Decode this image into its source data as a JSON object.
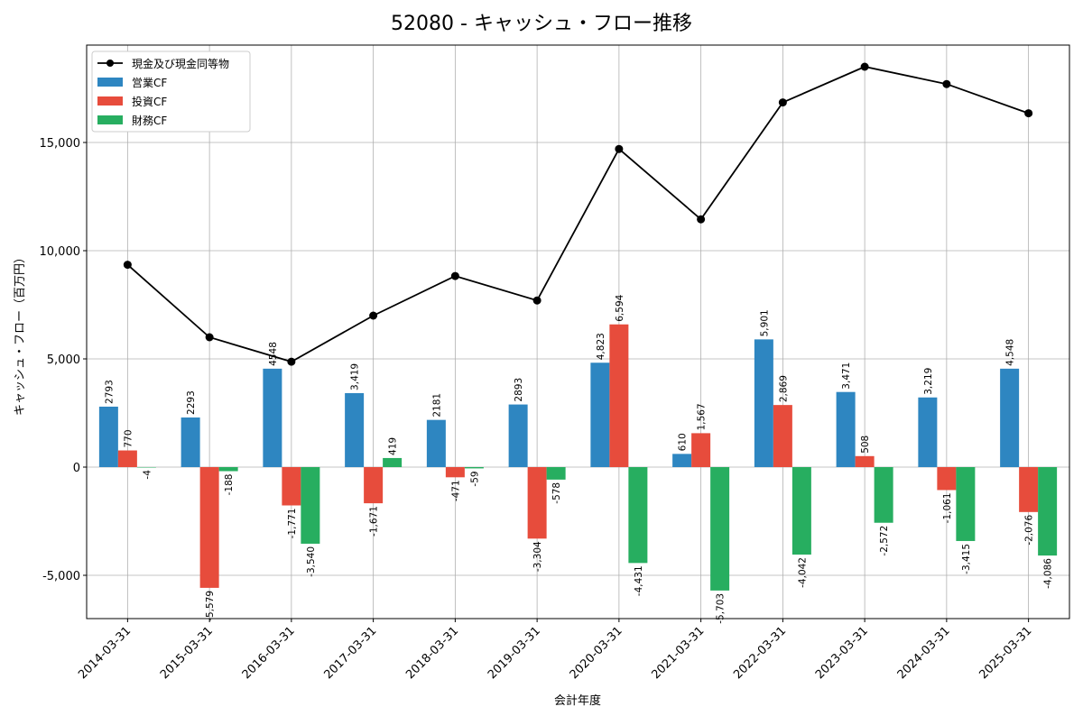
{
  "chart_data": {
    "type": "bar",
    "title": "52080 - キャッシュ・フロー推移",
    "xlabel": "会計年度",
    "ylabel": "キャッシュ・フロー（百万円）",
    "ylim": [
      -7000,
      19500
    ],
    "yticks": [
      -5000,
      0,
      5000,
      10000,
      15000
    ],
    "ytick_labels": [
      "-5,000",
      "0",
      "5,000",
      "10,000",
      "15,000"
    ],
    "grid": true,
    "legend_position": "top-left",
    "categories": [
      "2014-03-31",
      "2015-03-31",
      "2016-03-31",
      "2017-03-31",
      "2018-03-31",
      "2019-03-31",
      "2020-03-31",
      "2021-03-31",
      "2022-03-31",
      "2023-03-31",
      "2024-03-31",
      "2025-03-31"
    ],
    "series": [
      {
        "name": "営業CF",
        "kind": "bar",
        "color": "#2e86c1",
        "values": [
          2793,
          2293,
          4548,
          3419,
          2181,
          2893,
          4823,
          610,
          5901,
          3471,
          3219,
          4548
        ],
        "labels": [
          "2793",
          "2293",
          "4548",
          "3,419",
          "2181",
          "2893",
          "4,823",
          "610",
          "5,901",
          "3,471",
          "3,219",
          "4,548"
        ]
      },
      {
        "name": "投資CF",
        "kind": "bar",
        "color": "#e74c3c",
        "values": [
          770,
          -5579,
          -1771,
          -1671,
          -471,
          -3304,
          6594,
          1567,
          2869,
          508,
          -1061,
          -2076
        ],
        "labels": [
          "770",
          "-5,579",
          "-1,771",
          "-1,671",
          "-471",
          "-3,304",
          "6,594",
          "1,567",
          "2,869",
          "508",
          "-1,061",
          "-2,076"
        ]
      },
      {
        "name": "財務CF",
        "kind": "bar",
        "color": "#27ae60",
        "values": [
          -4,
          -188,
          -3540,
          419,
          -59,
          -578,
          -4431,
          -5703,
          -4042,
          -2572,
          -3415,
          -4086
        ],
        "labels": [
          "-4",
          "-188",
          "-3,540",
          "419",
          "-59",
          "-578",
          "-4,431",
          "-5,703",
          "-4,042",
          "-2,572",
          "-3,415",
          "-4,086"
        ]
      },
      {
        "name": "現金及び現金同等物",
        "kind": "line",
        "color": "#000000",
        "values": [
          9350,
          6000,
          4870,
          7000,
          8830,
          7700,
          14700,
          11450,
          16850,
          18500,
          17700,
          16350
        ]
      }
    ]
  }
}
